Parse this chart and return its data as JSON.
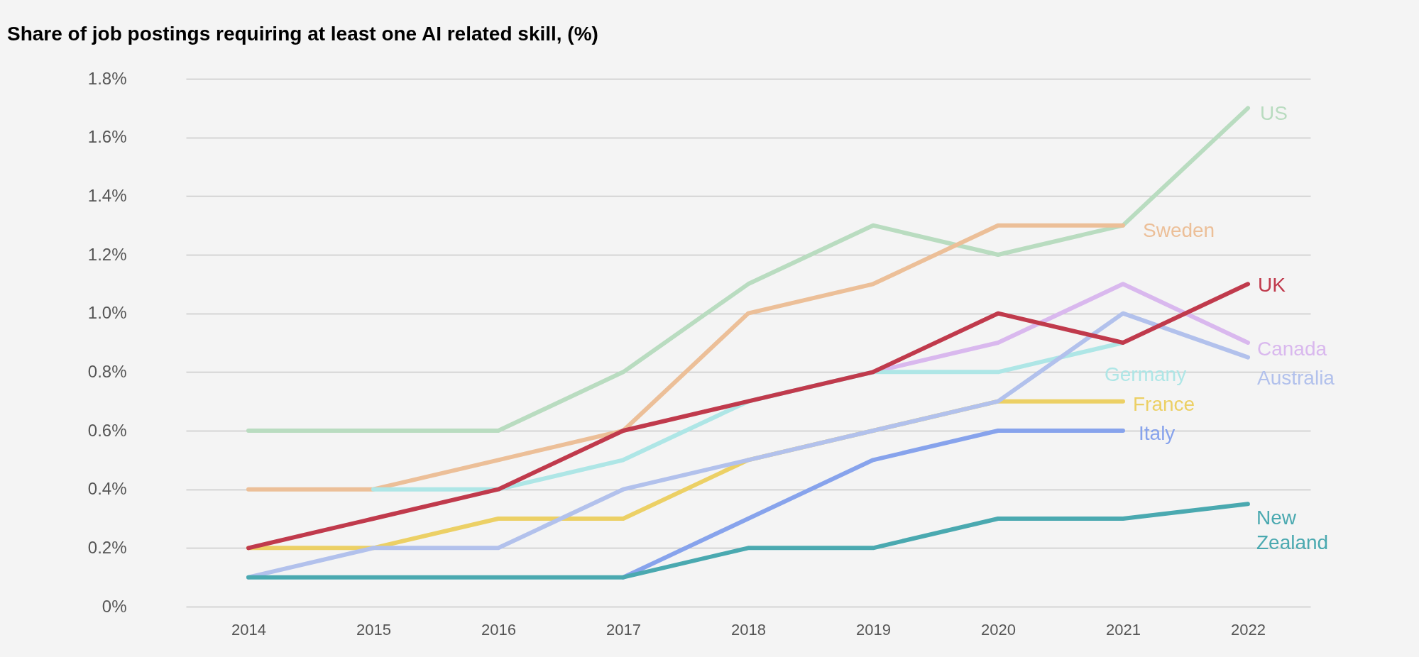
{
  "chart_data": {
    "type": "line",
    "title": "Share of job postings requiring at least one AI related skill, (%)",
    "categories": [
      "2014",
      "2015",
      "2016",
      "2017",
      "2018",
      "2019",
      "2020",
      "2021",
      "2022"
    ],
    "ylim": [
      0,
      1.8
    ],
    "yticks": [
      {
        "value": 0,
        "label": "0%"
      },
      {
        "value": 0.2,
        "label": "0.2%"
      },
      {
        "value": 0.4,
        "label": "0.4%"
      },
      {
        "value": 0.6,
        "label": "0.6%"
      },
      {
        "value": 0.8,
        "label": "0.8%"
      },
      {
        "value": 1,
        "label": "1.0%"
      },
      {
        "value": 1.2,
        "label": "1.2%"
      },
      {
        "value": 1.4,
        "label": "1.4%"
      },
      {
        "value": 1.6,
        "label": "1.6%"
      },
      {
        "value": 1.8,
        "label": "1.8%"
      }
    ],
    "grid": "y",
    "series": [
      {
        "name": "US",
        "color": "#b9dcc0",
        "values": [
          0.6,
          0.6,
          0.6,
          0.8,
          1.1,
          1.3,
          1.2,
          1.3,
          1.7
        ]
      },
      {
        "name": "Sweden",
        "color": "#ecbf98",
        "values": [
          0.4,
          0.4,
          0.5,
          0.6,
          1.0,
          1.1,
          1.3,
          1.3,
          null
        ]
      },
      {
        "name": "Canada",
        "color": "#d9b8ee",
        "values": [
          null,
          null,
          null,
          null,
          null,
          0.8,
          0.9,
          1.1,
          0.9
        ]
      },
      {
        "name": "Germany",
        "color": "#aee6e6",
        "values": [
          null,
          0.4,
          0.4,
          0.5,
          0.7,
          0.8,
          0.8,
          0.9,
          null
        ]
      },
      {
        "name": "France",
        "color": "#ecd065",
        "values": [
          0.2,
          0.2,
          0.3,
          0.3,
          0.5,
          null,
          0.7,
          0.7,
          null
        ]
      },
      {
        "name": "Australia",
        "color": "#b2c1ec",
        "values": [
          0.1,
          0.2,
          0.2,
          0.4,
          0.5,
          0.6,
          0.7,
          1.0,
          0.85
        ]
      },
      {
        "name": "Italy",
        "color": "#87a3ec",
        "values": [
          null,
          null,
          null,
          0.1,
          0.3,
          0.5,
          0.6,
          0.6,
          null
        ]
      },
      {
        "name": "New Zealand",
        "color": "#4aa9b0",
        "values": [
          0.1,
          0.1,
          0.1,
          0.1,
          0.2,
          0.2,
          0.3,
          0.3,
          0.35
        ]
      },
      {
        "name": "UK",
        "color": "#c03a4c",
        "values": [
          0.2,
          0.3,
          0.4,
          0.6,
          0.7,
          0.8,
          1.0,
          0.9,
          1.1
        ]
      }
    ]
  }
}
